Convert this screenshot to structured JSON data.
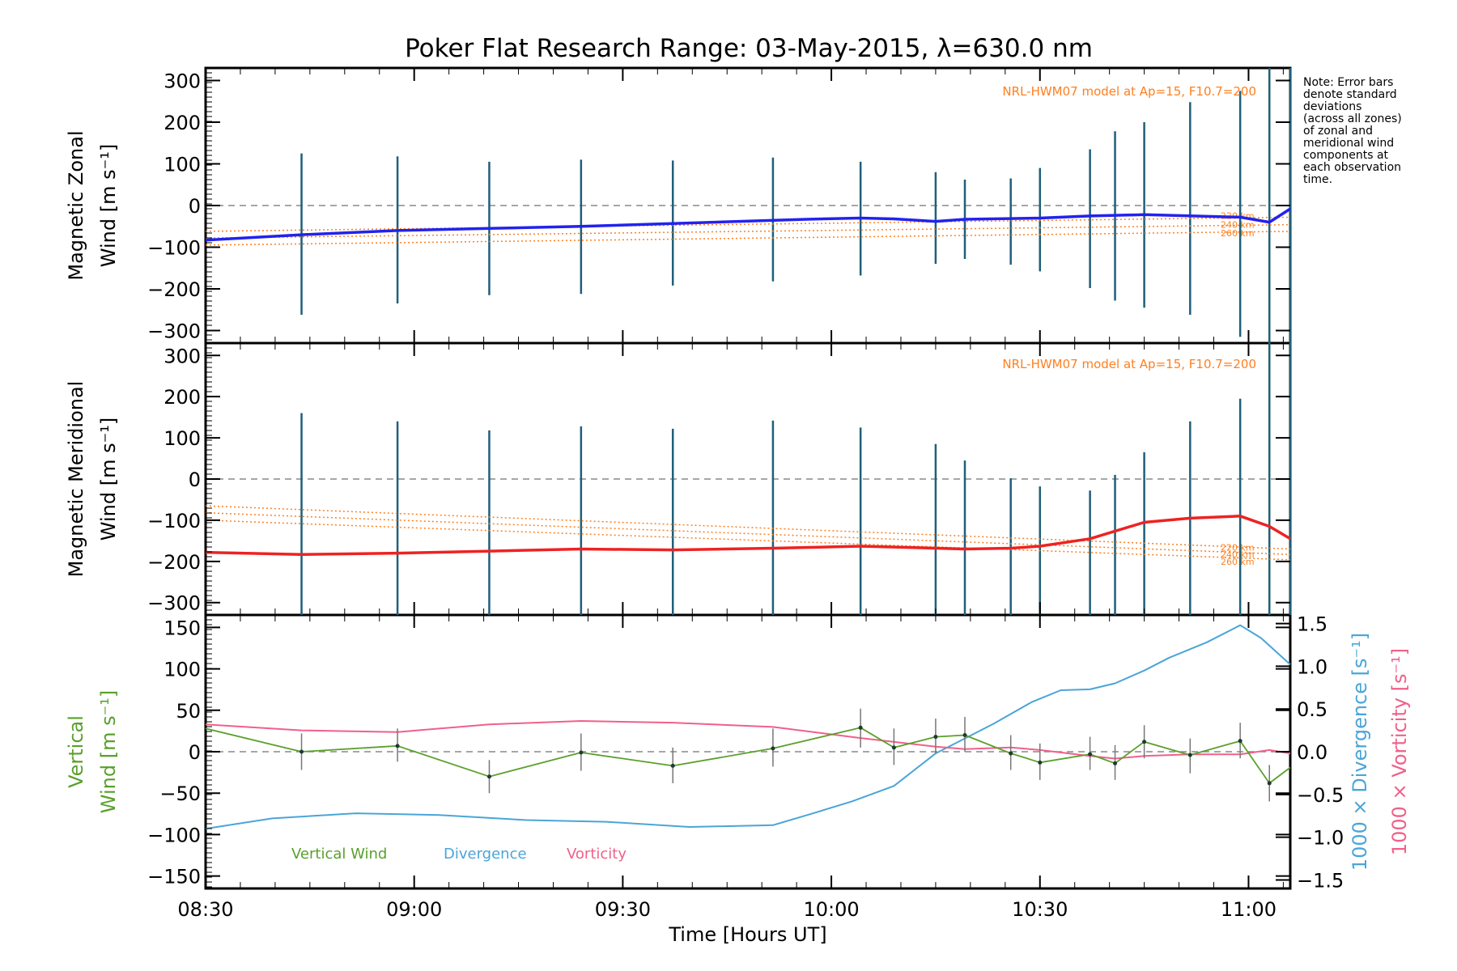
{
  "chart_data": [
    {
      "type": "line",
      "panel": "zonal",
      "title": "Poker Flat Research Range: 03-May-2015, λ=630.0 nm",
      "ylabel_line1": "Magnetic Zonal",
      "ylabel_line2": "Wind [m s⁻¹]",
      "ylim": [
        -330,
        330
      ],
      "yticks": [
        "300",
        "200",
        "100",
        "0",
        "−100",
        "−200",
        "−300"
      ],
      "ytick_values": [
        300,
        200,
        100,
        0,
        -100,
        -200,
        -300
      ],
      "model_label": "NRL-HWM07 model at Ap=15, F10.7=200",
      "model_levels": [
        "220 km",
        "240 km",
        "260 km"
      ],
      "note": [
        "Note: Error bars",
        "denote standard",
        "deviations",
        "(across all zones)",
        "of zonal and",
        "meridional wind",
        "components at",
        "each observation",
        "time."
      ],
      "series": [
        {
          "color": "#2222ee",
          "x": [
            8.5,
            8.73,
            8.96,
            9.18,
            9.4,
            9.72,
            9.94,
            10.07,
            10.15,
            10.25,
            10.32,
            10.5,
            10.62,
            10.75,
            10.98,
            11.05,
            11.1
          ],
          "values": [
            -83,
            -70,
            -60,
            -55,
            -50,
            -40,
            -33,
            -30,
            -32,
            -38,
            -33,
            -30,
            -25,
            -22,
            -28,
            -40,
            -8
          ]
        }
      ],
      "model_series": [
        {
          "x": [
            8.5,
            11.1
          ],
          "values": [
            -62,
            -28
          ]
        },
        {
          "x": [
            8.5,
            11.1
          ],
          "values": [
            -78,
            -46
          ]
        },
        {
          "x": [
            8.5,
            11.1
          ],
          "values": [
            -95,
            -62
          ]
        }
      ],
      "errorbars": {
        "x": [
          8.73,
          8.96,
          9.18,
          9.4,
          9.62,
          9.86,
          10.07,
          10.25,
          10.32,
          10.43,
          10.5,
          10.62,
          10.68,
          10.75,
          10.86,
          10.98,
          11.05,
          11.1
        ],
        "low": [
          -262,
          -235,
          -215,
          -212,
          -192,
          -182,
          -168,
          -140,
          -128,
          -142,
          -158,
          -198,
          -228,
          -245,
          -262,
          -315,
          -330,
          -330
        ],
        "high": [
          125,
          118,
          105,
          110,
          108,
          115,
          105,
          80,
          62,
          65,
          90,
          135,
          178,
          200,
          248,
          275,
          330,
          330
        ]
      }
    },
    {
      "type": "line",
      "panel": "meridional",
      "ylabel_line1": "Magnetic Meridional",
      "ylabel_line2": "Wind [m s⁻¹]",
      "ylim": [
        -330,
        330
      ],
      "yticks": [
        "300",
        "200",
        "100",
        "0",
        "−100",
        "−200",
        "−300"
      ],
      "ytick_values": [
        300,
        200,
        100,
        0,
        -100,
        -200,
        -300
      ],
      "model_label": "NRL-HWM07 model at Ap=15, F10.7=200",
      "model_levels": [
        "220 km",
        "240 km",
        "260 km"
      ],
      "series": [
        {
          "color": "#ee2222",
          "x": [
            8.5,
            8.73,
            8.96,
            9.18,
            9.4,
            9.62,
            9.86,
            10.07,
            10.25,
            10.32,
            10.43,
            10.5,
            10.62,
            10.75,
            10.86,
            10.98,
            11.05,
            11.1
          ],
          "values": [
            -178,
            -183,
            -180,
            -175,
            -170,
            -172,
            -168,
            -163,
            -168,
            -170,
            -168,
            -163,
            -145,
            -105,
            -95,
            -90,
            -115,
            -145
          ]
        }
      ],
      "model_series": [
        {
          "x": [
            8.5,
            11.1
          ],
          "values": [
            -65,
            -170
          ]
        },
        {
          "x": [
            8.5,
            11.1
          ],
          "values": [
            -82,
            -183
          ]
        },
        {
          "x": [
            8.5,
            11.1
          ],
          "values": [
            -100,
            -196
          ]
        }
      ],
      "errorbars": {
        "x": [
          8.73,
          8.96,
          9.18,
          9.4,
          9.62,
          9.86,
          10.07,
          10.25,
          10.32,
          10.43,
          10.5,
          10.62,
          10.68,
          10.75,
          10.86,
          10.98,
          11.05,
          11.1
        ],
        "low": [
          -330,
          -330,
          -330,
          -330,
          -330,
          -330,
          -330,
          -330,
          -330,
          -330,
          -330,
          -330,
          -330,
          -330,
          -330,
          -330,
          -330,
          -330
        ],
        "high": [
          160,
          140,
          118,
          128,
          122,
          142,
          125,
          85,
          45,
          2,
          -18,
          -28,
          10,
          65,
          140,
          195,
          330,
          330
        ]
      }
    },
    {
      "type": "line",
      "panel": "vertical",
      "xlabel": "Time [Hours UT]",
      "xticks": [
        "08:30",
        "09:00",
        "09:30",
        "10:00",
        "10:30",
        "11:00"
      ],
      "xtick_values": [
        8.5,
        9.0,
        9.5,
        10.0,
        10.5,
        11.0
      ],
      "xlim": [
        8.5,
        11.1
      ],
      "ylabel_line1": "Vertical",
      "ylabel_line2": "Wind [m s⁻¹]",
      "ylim": [
        -165,
        165
      ],
      "yticks": [
        "150",
        "100",
        "50",
        "0",
        "−50",
        "−100",
        "−150"
      ],
      "ytick_values": [
        150,
        100,
        50,
        0,
        -50,
        -100,
        -150
      ],
      "y2label_divergence": "1000 × Divergence [s⁻¹]",
      "y2label_vorticity": "1000 × Vorticity [s⁻¹]",
      "y2lim": [
        -1.6,
        1.6
      ],
      "y2ticks": [
        "1.5",
        "1.0",
        "0.5",
        "0.0",
        "−0.5",
        "−1.0",
        "−1.5"
      ],
      "y2tick_values": [
        1.5,
        1.0,
        0.5,
        0.0,
        -0.5,
        -1.0,
        -1.5
      ],
      "legend_location": "bottom-left",
      "series": [
        {
          "name": "Vertical Wind",
          "color": "#5aa02c",
          "axis": "left",
          "x": [
            8.5,
            8.73,
            8.96,
            9.18,
            9.4,
            9.62,
            9.86,
            10.07,
            10.15,
            10.25,
            10.32,
            10.43,
            10.5,
            10.62,
            10.68,
            10.75,
            10.86,
            10.98,
            11.05,
            11.1
          ],
          "values": [
            28,
            0,
            7,
            -30,
            -1,
            -17,
            4,
            29,
            5,
            18,
            20,
            -2,
            -13,
            -3,
            -14,
            12,
            -4,
            13,
            -38,
            -19
          ]
        },
        {
          "name": "Divergence",
          "color": "#4aa5d8",
          "axis": "right",
          "x": [
            8.5,
            8.66,
            8.86,
            9.06,
            9.27,
            9.46,
            9.66,
            9.86,
            9.95,
            10.05,
            10.15,
            10.25,
            10.39,
            10.48,
            10.55,
            10.62,
            10.68,
            10.75,
            10.81,
            10.9,
            10.98,
            11.03,
            11.1
          ],
          "values": [
            -0.9,
            -0.78,
            -0.72,
            -0.74,
            -0.8,
            -0.82,
            -0.88,
            -0.86,
            -0.73,
            -0.58,
            -0.4,
            -0.02,
            0.33,
            0.58,
            0.72,
            0.73,
            0.8,
            0.95,
            1.1,
            1.28,
            1.48,
            1.33,
            1.02
          ]
        },
        {
          "name": "Vorticity",
          "color": "#f0608a",
          "axis": "right",
          "x": [
            8.5,
            8.73,
            8.96,
            9.18,
            9.4,
            9.62,
            9.86,
            10.07,
            10.25,
            10.32,
            10.43,
            10.5,
            10.62,
            10.68,
            10.75,
            10.86,
            10.98,
            11.05,
            11.1
          ],
          "values": [
            0.32,
            0.25,
            0.23,
            0.32,
            0.36,
            0.34,
            0.29,
            0.16,
            0.06,
            0.03,
            0.05,
            0.02,
            -0.05,
            -0.08,
            -0.05,
            -0.03,
            -0.03,
            0.02,
            -0.02
          ]
        }
      ],
      "errorbars": {
        "x": [
          8.73,
          8.96,
          9.18,
          9.4,
          9.62,
          9.86,
          10.07,
          10.15,
          10.25,
          10.32,
          10.43,
          10.5,
          10.62,
          10.68,
          10.75,
          10.86,
          10.98,
          11.05
        ],
        "low": [
          -22,
          -12,
          -50,
          -23,
          -38,
          -18,
          5,
          -16,
          -2,
          0,
          -22,
          -34,
          -22,
          -34,
          -8,
          -26,
          -8,
          -60
        ],
        "high": [
          22,
          28,
          -10,
          22,
          5,
          28,
          52,
          28,
          40,
          42,
          20,
          10,
          18,
          8,
          32,
          16,
          35,
          -16
        ]
      }
    }
  ]
}
